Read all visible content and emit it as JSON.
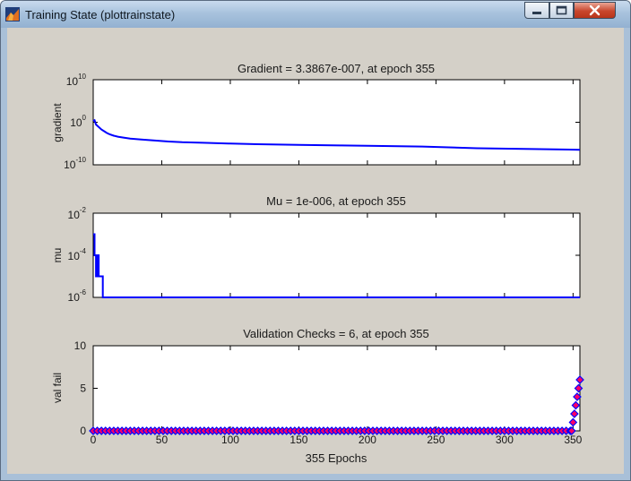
{
  "window": {
    "title": "Training State (plottrainstate)",
    "icon": "matlab-figure-icon"
  },
  "chart_data": [
    {
      "type": "line",
      "title": "Gradient = 3.3867e-007, at epoch 355",
      "xlabel": "",
      "ylabel": "gradient",
      "yscale": "log",
      "xlim": [
        0,
        355
      ],
      "ylim": [
        1e-10,
        10000000000.0
      ],
      "yticks": [
        {
          "value": 10000000000.0,
          "label": "10",
          "exp": "10"
        },
        {
          "value": 1,
          "label": "10",
          "exp": "0"
        },
        {
          "value": 1e-10,
          "label": "10",
          "exp": "-10"
        }
      ],
      "color": "#0000ff",
      "series": [
        {
          "x": [
            0,
            1,
            2,
            4,
            6,
            8,
            10,
            12,
            15,
            18,
            22,
            27,
            35,
            45,
            55,
            65,
            80,
            100,
            120,
            150,
            180,
            200,
            240,
            280,
            320,
            355
          ],
          "y": [
            2,
            3,
            0.3,
            0.08,
            0.02,
            0.008,
            0.003,
            0.0015,
            0.0007,
            0.0004,
            0.00025,
            0.00015,
            9e-05,
            5e-05,
            3e-05,
            2e-05,
            1.5e-05,
            1e-05,
            7e-06,
            5e-06,
            3.5e-06,
            3e-06,
            2e-06,
            8e-07,
            5e-07,
            3.3867e-07
          ]
        }
      ]
    },
    {
      "type": "line",
      "title": "Mu = 1e-006, at epoch 355",
      "xlabel": "",
      "ylabel": "mu",
      "yscale": "log",
      "xlim": [
        0,
        355
      ],
      "ylim": [
        1e-06,
        0.01
      ],
      "yticks": [
        {
          "value": 0.01,
          "label": "10",
          "exp": "-2"
        },
        {
          "value": 0.0001,
          "label": "10",
          "exp": "-4"
        },
        {
          "value": 1e-06,
          "label": "10",
          "exp": "-6"
        }
      ],
      "color": "#0000ff",
      "series": [
        {
          "x": [
            0,
            1,
            1,
            2,
            2,
            3,
            3,
            4,
            4,
            5,
            5,
            6,
            6,
            7,
            7,
            355
          ],
          "y": [
            0.001,
            0.001,
            0.0001,
            0.0001,
            1e-05,
            1e-05,
            0.0001,
            0.0001,
            1e-05,
            1e-05,
            1e-05,
            1e-05,
            1e-05,
            1e-05,
            1e-06,
            1e-06
          ]
        }
      ]
    },
    {
      "type": "scatter",
      "title": "Validation Checks = 6, at epoch 355",
      "xlabel": "355 Epochs",
      "ylabel": "val fail",
      "yscale": "linear",
      "xlim": [
        0,
        355
      ],
      "ylim": [
        0,
        10
      ],
      "xticks": [
        0,
        50,
        100,
        150,
        200,
        250,
        300,
        350
      ],
      "yticks": [
        0,
        5,
        10
      ],
      "marker_edge": "#0000ff",
      "marker_fill": "#ff0066",
      "series": [
        {
          "x_start": 0,
          "x_end": 349,
          "x_step": 3,
          "y": 0
        },
        {
          "x": [
            349,
            350,
            351,
            352,
            353,
            354,
            355
          ],
          "y": [
            0,
            1,
            2,
            3,
            4,
            5,
            6
          ]
        }
      ]
    }
  ]
}
